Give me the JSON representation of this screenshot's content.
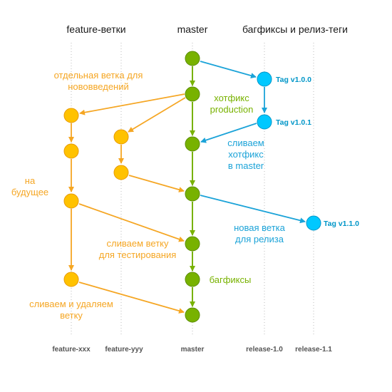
{
  "headers": {
    "feature": "feature-ветки",
    "master": "master",
    "release": "багфиксы и релиз-теги"
  },
  "lanes": {
    "feature_xxx": "feature-xxx",
    "feature_yyy": "feature-yyy",
    "master": "master",
    "release_1_0": "release-1.0",
    "release_1_1": "release-1.1"
  },
  "labels": {
    "separate_branch_1": "отдельная ветка для",
    "separate_branch_2": "нововведений",
    "hotfix_1": "хотфикс",
    "hotfix_2": "production",
    "merge_hotfix_1": "сливаем",
    "merge_hotfix_2": "хотфикс",
    "merge_hotfix_3": "в master",
    "future_1": "на",
    "future_2": "будущее",
    "new_release_1": "новая ветка",
    "new_release_2": "для релиза",
    "merge_test_1": "сливаем ветку",
    "merge_test_2": "для тестирования",
    "bugfixes": "багфиксы",
    "merge_delete_1": "сливаем и удаляем",
    "merge_delete_2": "ветку"
  },
  "tags": {
    "v100": "Tag v1.0.0",
    "v101": "Tag v1.0.1",
    "v110": "Tag v1.1.0"
  },
  "colors": {
    "master": "#78b200",
    "master_stroke": "#5a8c00",
    "feature": "#ffc200",
    "feature_stroke": "#e89a00",
    "feature_arrow": "#f5a623",
    "release": "#00c8ff",
    "release_stroke": "#0096c8",
    "release_arrow": "#1ba3d8",
    "lane_line": "#bbbbbb"
  }
}
